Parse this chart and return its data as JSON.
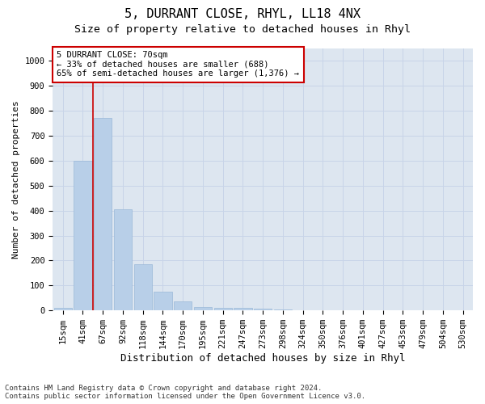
{
  "title": "5, DURRANT CLOSE, RHYL, LL18 4NX",
  "subtitle": "Size of property relative to detached houses in Rhyl",
  "xlabel": "Distribution of detached houses by size in Rhyl",
  "ylabel": "Number of detached properties",
  "footer_line1": "Contains HM Land Registry data © Crown copyright and database right 2024.",
  "footer_line2": "Contains public sector information licensed under the Open Government Licence v3.0.",
  "categories": [
    "15sqm",
    "41sqm",
    "67sqm",
    "92sqm",
    "118sqm",
    "144sqm",
    "170sqm",
    "195sqm",
    "221sqm",
    "247sqm",
    "273sqm",
    "298sqm",
    "324sqm",
    "350sqm",
    "376sqm",
    "401sqm",
    "427sqm",
    "453sqm",
    "479sqm",
    "504sqm",
    "530sqm"
  ],
  "values": [
    12,
    600,
    770,
    405,
    185,
    75,
    35,
    13,
    10,
    12,
    8,
    5,
    0,
    0,
    0,
    0,
    0,
    0,
    0,
    0,
    0
  ],
  "bar_color": "#b8cfe8",
  "bar_edge_color": "#9ab8d8",
  "grid_color": "#c8d4e8",
  "background_color": "#dde6f0",
  "annotation_box_color": "#ffffff",
  "annotation_border_color": "#cc0000",
  "redline_color": "#cc0000",
  "redline_x": 1.5,
  "annotation_title": "5 DURRANT CLOSE: 70sqm",
  "annotation_line2": "← 33% of detached houses are smaller (688)",
  "annotation_line3": "65% of semi-detached houses are larger (1,376) →",
  "ylim": [
    0,
    1050
  ],
  "yticks": [
    0,
    100,
    200,
    300,
    400,
    500,
    600,
    700,
    800,
    900,
    1000
  ],
  "title_fontsize": 11,
  "subtitle_fontsize": 9.5,
  "annotation_fontsize": 7.5,
  "axis_tick_fontsize": 7.5,
  "ylabel_fontsize": 8,
  "xlabel_fontsize": 9,
  "footer_fontsize": 6.5
}
